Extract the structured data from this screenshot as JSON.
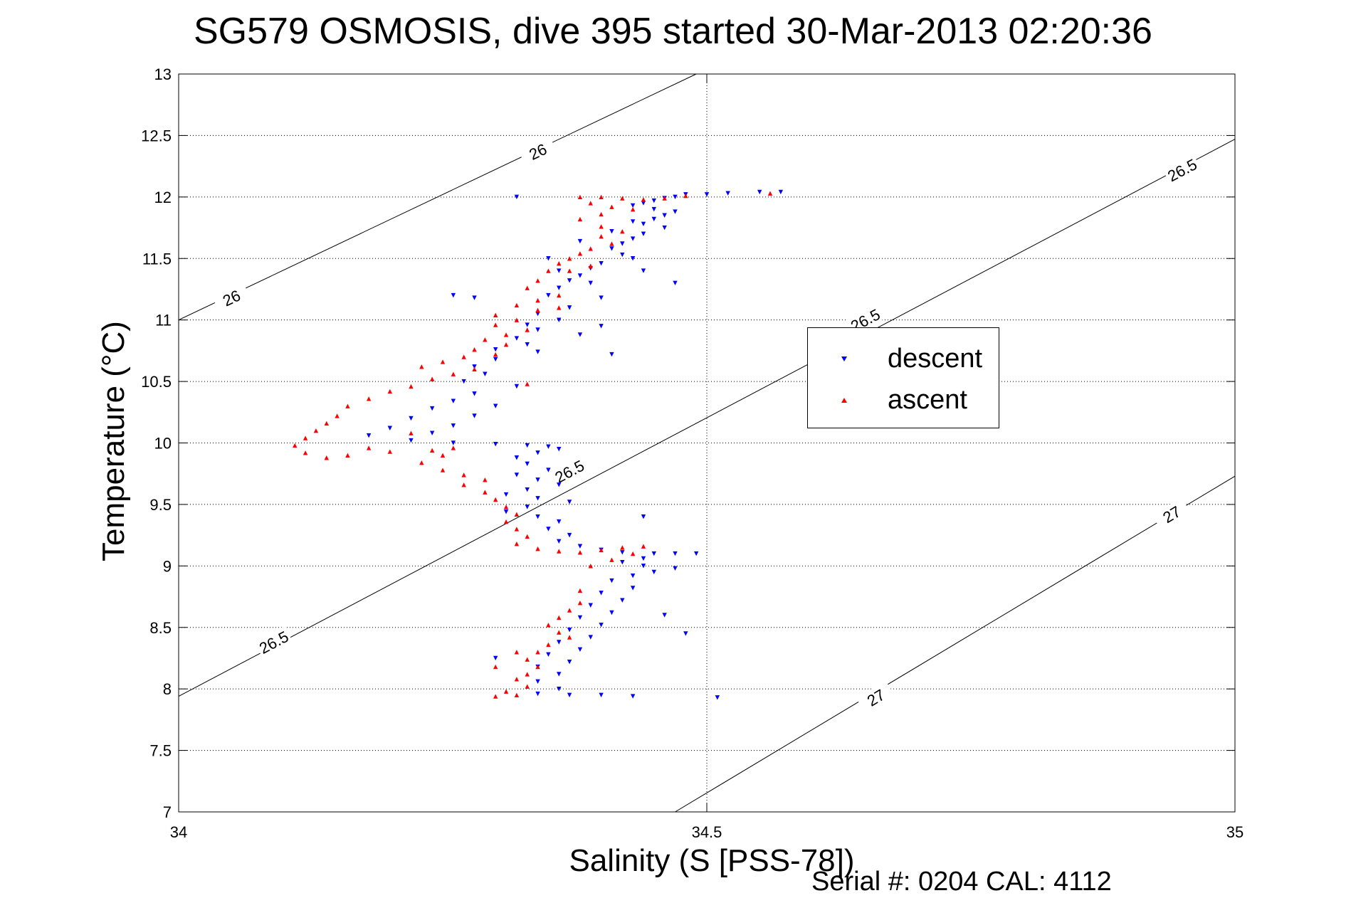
{
  "header": {
    "title": "SG579 OSMOSIS, dive 395 started 30-Mar-2013 02:20:36"
  },
  "footer": {
    "serial_text": "Serial #: 0204  CAL: 4112"
  },
  "chart_data": {
    "type": "scatter",
    "title": "SG579 OSMOSIS, dive 395 started 30-Mar-2013 02:20:36",
    "xlabel": "Salinity (S [PSS-78])",
    "ylabel": "Temperature (°C)",
    "xlim": [
      34,
      35
    ],
    "ylim": [
      7,
      13
    ],
    "x_ticks": [
      34,
      34.5,
      35
    ],
    "x_tick_labels": [
      "34",
      "34.5",
      "35"
    ],
    "y_ticks": [
      7,
      7.5,
      8,
      8.5,
      9,
      9.5,
      10,
      10.5,
      11,
      11.5,
      12,
      12.5,
      13
    ],
    "y_tick_labels": [
      "7",
      "7.5",
      "8",
      "8.5",
      "9",
      "9.5",
      "10",
      "10.5",
      "11",
      "11.5",
      "12",
      "12.5",
      "13"
    ],
    "grid": true,
    "legend_position": "right",
    "legend": [
      {
        "label": "descent",
        "color": "#0000ff",
        "marker": "triangle-down"
      },
      {
        "label": "ascent",
        "color": "#ff0000",
        "marker": "triangle-up"
      }
    ],
    "contours": [
      {
        "label": "26",
        "points": [
          [
            34.0,
            11.0
          ],
          [
            34.49,
            13.0
          ]
        ],
        "label_positions": [
          [
            34.05,
            11.18
          ],
          [
            34.34,
            12.37
          ]
        ]
      },
      {
        "label": "26.5",
        "points": [
          [
            34.0,
            7.94
          ],
          [
            35.0,
            12.47
          ]
        ],
        "label_positions": [
          [
            34.09,
            8.38
          ],
          [
            34.65,
            11.0
          ],
          [
            34.37,
            9.77
          ],
          [
            34.95,
            12.22
          ]
        ]
      },
      {
        "label": "27",
        "points": [
          [
            34.47,
            7.0
          ],
          [
            35.0,
            9.73
          ]
        ],
        "label_positions": [
          [
            34.66,
            7.93
          ],
          [
            34.94,
            9.42
          ]
        ]
      }
    ],
    "series": [
      {
        "name": "descent",
        "color": "#0000ff",
        "marker": "triangle-down",
        "points": [
          [
            34.52,
            12.03
          ],
          [
            34.55,
            12.04
          ],
          [
            34.57,
            12.04
          ],
          [
            34.5,
            12.02
          ],
          [
            34.48,
            12.02
          ],
          [
            34.47,
            12.0
          ],
          [
            34.46,
            11.99
          ],
          [
            34.45,
            11.97
          ],
          [
            34.44,
            11.95
          ],
          [
            34.43,
            11.93
          ],
          [
            34.45,
            11.9
          ],
          [
            34.47,
            11.88
          ],
          [
            34.46,
            11.85
          ],
          [
            34.45,
            11.82
          ],
          [
            34.44,
            11.78
          ],
          [
            34.46,
            11.75
          ],
          [
            34.44,
            11.7
          ],
          [
            34.43,
            11.66
          ],
          [
            34.42,
            11.62
          ],
          [
            34.41,
            11.58
          ],
          [
            34.42,
            11.53
          ],
          [
            34.43,
            11.5
          ],
          [
            34.4,
            11.46
          ],
          [
            34.39,
            11.42
          ],
          [
            34.38,
            11.36
          ],
          [
            34.37,
            11.32
          ],
          [
            34.39,
            11.3
          ],
          [
            34.36,
            11.26
          ],
          [
            34.35,
            11.2
          ],
          [
            34.4,
            11.18
          ],
          [
            34.37,
            11.1
          ],
          [
            34.34,
            11.05
          ],
          [
            34.36,
            11.0
          ],
          [
            34.33,
            10.96
          ],
          [
            34.34,
            10.92
          ],
          [
            34.38,
            10.88
          ],
          [
            34.32,
            10.85
          ],
          [
            34.33,
            10.8
          ],
          [
            34.3,
            10.76
          ],
          [
            34.34,
            10.74
          ],
          [
            34.3,
            10.68
          ],
          [
            34.28,
            10.62
          ],
          [
            34.29,
            10.56
          ],
          [
            34.27,
            10.5
          ],
          [
            34.32,
            10.46
          ],
          [
            34.28,
            10.4
          ],
          [
            34.26,
            10.34
          ],
          [
            34.3,
            10.3
          ],
          [
            34.24,
            10.28
          ],
          [
            34.28,
            10.22
          ],
          [
            34.22,
            10.2
          ],
          [
            34.26,
            10.14
          ],
          [
            34.2,
            10.12
          ],
          [
            34.24,
            10.08
          ],
          [
            34.18,
            10.06
          ],
          [
            34.22,
            10.02
          ],
          [
            34.26,
            10.0
          ],
          [
            34.3,
            9.99
          ],
          [
            34.33,
            9.98
          ],
          [
            34.35,
            9.97
          ],
          [
            34.36,
            9.95
          ],
          [
            34.34,
            9.92
          ],
          [
            34.32,
            9.88
          ],
          [
            34.33,
            9.83
          ],
          [
            34.35,
            9.78
          ],
          [
            34.32,
            9.74
          ],
          [
            34.34,
            9.7
          ],
          [
            34.36,
            9.66
          ],
          [
            34.33,
            9.62
          ],
          [
            34.31,
            9.58
          ],
          [
            34.34,
            9.55
          ],
          [
            34.37,
            9.52
          ],
          [
            34.33,
            9.48
          ],
          [
            34.31,
            9.44
          ],
          [
            34.34,
            9.4
          ],
          [
            34.36,
            9.36
          ],
          [
            34.35,
            9.3
          ],
          [
            34.37,
            9.25
          ],
          [
            34.36,
            9.2
          ],
          [
            34.38,
            9.16
          ],
          [
            34.4,
            9.13
          ],
          [
            34.42,
            9.11
          ],
          [
            34.45,
            9.1
          ],
          [
            34.47,
            9.1
          ],
          [
            34.44,
            9.06
          ],
          [
            34.42,
            9.03
          ],
          [
            34.44,
            9.0
          ],
          [
            34.47,
            8.98
          ],
          [
            34.45,
            8.95
          ],
          [
            34.43,
            8.92
          ],
          [
            34.41,
            8.88
          ],
          [
            34.43,
            8.82
          ],
          [
            34.4,
            8.78
          ],
          [
            34.42,
            8.72
          ],
          [
            34.39,
            8.68
          ],
          [
            34.41,
            8.62
          ],
          [
            34.38,
            8.58
          ],
          [
            34.4,
            8.52
          ],
          [
            34.37,
            8.48
          ],
          [
            34.39,
            8.42
          ],
          [
            34.36,
            8.38
          ],
          [
            34.38,
            8.32
          ],
          [
            34.35,
            8.28
          ],
          [
            34.37,
            8.22
          ],
          [
            34.34,
            8.18
          ],
          [
            34.36,
            8.12
          ],
          [
            34.34,
            8.06
          ],
          [
            34.36,
            8.0
          ],
          [
            34.34,
            7.96
          ],
          [
            34.37,
            7.95
          ],
          [
            34.4,
            7.95
          ],
          [
            34.43,
            7.94
          ],
          [
            34.51,
            7.93
          ],
          [
            34.3,
            8.25
          ],
          [
            34.48,
            8.45
          ],
          [
            34.46,
            8.6
          ],
          [
            34.44,
            9.4
          ],
          [
            34.49,
            9.1
          ],
          [
            34.41,
            10.72
          ],
          [
            34.4,
            10.95
          ],
          [
            34.47,
            11.3
          ],
          [
            34.44,
            11.4
          ],
          [
            34.26,
            11.2
          ],
          [
            34.28,
            11.18
          ],
          [
            34.32,
            12.0
          ],
          [
            34.35,
            11.5
          ],
          [
            34.38,
            11.64
          ],
          [
            34.41,
            11.72
          ],
          [
            34.43,
            11.8
          ],
          [
            34.36,
            11.4
          ]
        ]
      },
      {
        "name": "ascent",
        "color": "#ff0000",
        "marker": "triangle-up",
        "points": [
          [
            34.38,
            12.0
          ],
          [
            34.4,
            12.0
          ],
          [
            34.42,
            11.99
          ],
          [
            34.44,
            11.98
          ],
          [
            34.46,
            11.99
          ],
          [
            34.48,
            12.01
          ],
          [
            34.56,
            12.03
          ],
          [
            34.39,
            11.95
          ],
          [
            34.41,
            11.92
          ],
          [
            34.43,
            11.9
          ],
          [
            34.4,
            11.86
          ],
          [
            34.38,
            11.82
          ],
          [
            34.4,
            11.76
          ],
          [
            34.42,
            11.72
          ],
          [
            34.4,
            11.68
          ],
          [
            34.41,
            11.62
          ],
          [
            34.39,
            11.58
          ],
          [
            34.38,
            11.54
          ],
          [
            34.37,
            11.5
          ],
          [
            34.36,
            11.46
          ],
          [
            34.35,
            11.4
          ],
          [
            34.34,
            11.32
          ],
          [
            34.33,
            11.26
          ],
          [
            34.36,
            11.2
          ],
          [
            34.34,
            11.16
          ],
          [
            34.32,
            11.12
          ],
          [
            34.34,
            11.08
          ],
          [
            34.3,
            11.04
          ],
          [
            34.32,
            11.0
          ],
          [
            34.3,
            10.96
          ],
          [
            34.33,
            10.92
          ],
          [
            34.31,
            10.88
          ],
          [
            34.29,
            10.84
          ],
          [
            34.31,
            10.8
          ],
          [
            34.28,
            10.76
          ],
          [
            34.3,
            10.72
          ],
          [
            34.27,
            10.7
          ],
          [
            34.25,
            10.66
          ],
          [
            34.23,
            10.62
          ],
          [
            34.28,
            10.6
          ],
          [
            34.26,
            10.56
          ],
          [
            34.24,
            10.52
          ],
          [
            34.22,
            10.46
          ],
          [
            34.2,
            10.42
          ],
          [
            34.18,
            10.36
          ],
          [
            34.16,
            10.3
          ],
          [
            34.15,
            10.22
          ],
          [
            34.14,
            10.16
          ],
          [
            34.13,
            10.1
          ],
          [
            34.12,
            10.04
          ],
          [
            34.11,
            9.98
          ],
          [
            34.12,
            9.92
          ],
          [
            34.14,
            9.88
          ],
          [
            34.16,
            9.9
          ],
          [
            34.2,
            9.93
          ],
          [
            34.24,
            9.94
          ],
          [
            34.26,
            9.96
          ],
          [
            34.25,
            9.9
          ],
          [
            34.23,
            9.84
          ],
          [
            34.25,
            9.78
          ],
          [
            34.27,
            9.74
          ],
          [
            34.29,
            9.7
          ],
          [
            34.27,
            9.66
          ],
          [
            34.29,
            9.6
          ],
          [
            34.3,
            9.54
          ],
          [
            34.31,
            9.48
          ],
          [
            34.32,
            9.42
          ],
          [
            34.31,
            9.36
          ],
          [
            34.32,
            9.3
          ],
          [
            34.33,
            9.24
          ],
          [
            34.32,
            9.18
          ],
          [
            34.34,
            9.14
          ],
          [
            34.36,
            9.12
          ],
          [
            34.38,
            9.11
          ],
          [
            34.4,
            9.13
          ],
          [
            34.42,
            9.15
          ],
          [
            34.44,
            9.16
          ],
          [
            34.43,
            9.1
          ],
          [
            34.41,
            9.05
          ],
          [
            34.39,
            9.0
          ],
          [
            34.38,
            8.7
          ],
          [
            34.37,
            8.64
          ],
          [
            34.36,
            8.58
          ],
          [
            34.35,
            8.52
          ],
          [
            34.36,
            8.46
          ],
          [
            34.37,
            8.42
          ],
          [
            34.35,
            8.36
          ],
          [
            34.34,
            8.3
          ],
          [
            34.33,
            8.24
          ],
          [
            34.34,
            8.18
          ],
          [
            34.33,
            8.12
          ],
          [
            34.32,
            8.08
          ],
          [
            34.33,
            8.02
          ],
          [
            34.31,
            7.98
          ],
          [
            34.32,
            7.95
          ],
          [
            34.3,
            7.94
          ],
          [
            34.32,
            8.3
          ],
          [
            34.3,
            8.18
          ],
          [
            34.38,
            8.8
          ],
          [
            34.39,
            11.44
          ],
          [
            34.37,
            11.4
          ],
          [
            34.33,
            10.48
          ],
          [
            34.36,
            11.1
          ],
          [
            34.22,
            10.08
          ],
          [
            34.18,
            9.96
          ]
        ]
      }
    ]
  }
}
